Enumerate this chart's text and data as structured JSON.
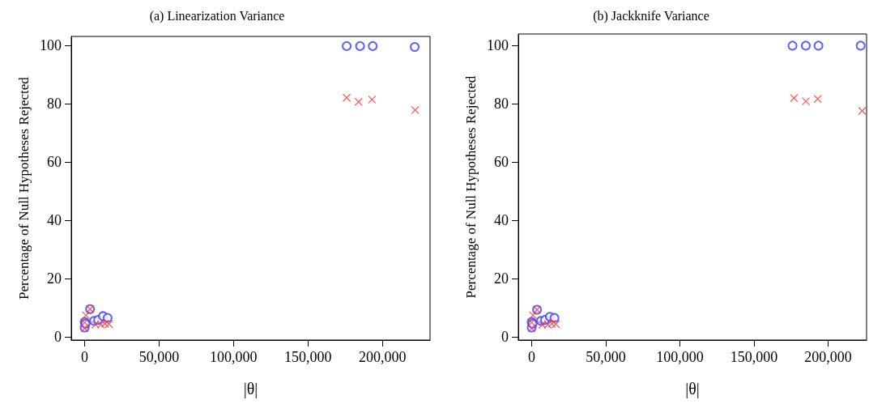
{
  "chart_data": [
    {
      "type": "scatter",
      "title": "(a) Linearization Variance",
      "xlabel": "|θ|",
      "ylabel": "Percentage of Null Hypotheses Rejected",
      "xlim": [
        -9000,
        232000
      ],
      "ylim": [
        -1,
        103
      ],
      "xticks": [
        {
          "value": 0,
          "label": "0"
        },
        {
          "value": 50000,
          "label": "50,000"
        },
        {
          "value": 100000,
          "label": "100,000"
        },
        {
          "value": 150000,
          "label": "150,000"
        },
        {
          "value": 200000,
          "label": "200,000"
        }
      ],
      "yticks": [
        0,
        20,
        40,
        60,
        80,
        100
      ],
      "series": [
        {
          "color": "#3b3bff",
          "marker": "circle",
          "x": [
            0,
            0,
            600,
            3600,
            6300,
            9000,
            12300,
            15400,
            176000,
            185000,
            193500,
            221700
          ],
          "values": [
            3.3,
            5.2,
            4.6,
            9.6,
            5.6,
            5.9,
            7.2,
            6.6,
            99.7,
            99.7,
            99.7,
            99.4
          ]
        },
        {
          "color": "#ff3333",
          "marker": "cross",
          "x": [
            0,
            0,
            900,
            3600,
            7200,
            10900,
            13600,
            16300,
            176000,
            184000,
            193000,
            222000
          ],
          "values": [
            3,
            5,
            7.5,
            9.6,
            4.3,
            4.3,
            4.6,
            4.5,
            82,
            80.6,
            81.4,
            77.8
          ]
        }
      ]
    },
    {
      "type": "scatter",
      "title": "(b) Jackknife Variance",
      "xlabel": "|θ|",
      "ylabel": "Percentage of Null Hypotheses Rejected",
      "xlim": [
        -9000,
        226000
      ],
      "ylim": [
        -1,
        104
      ],
      "xticks": [
        {
          "value": 0,
          "label": "0"
        },
        {
          "value": 50000,
          "label": "50,000"
        },
        {
          "value": 100000,
          "label": "100,000"
        },
        {
          "value": 150000,
          "label": "150,000"
        },
        {
          "value": 200000,
          "label": "200,000"
        }
      ],
      "yticks": [
        0,
        20,
        40,
        60,
        80,
        100
      ],
      "series": [
        {
          "color": "#3b3bff",
          "marker": "circle",
          "x": [
            0,
            0,
            600,
            3600,
            6300,
            9000,
            12300,
            15400,
            176000,
            185000,
            193500,
            222000
          ],
          "values": [
            3.3,
            5.2,
            4.6,
            9.4,
            5.6,
            5.9,
            7.0,
            6.6,
            100,
            100,
            100,
            100
          ]
        },
        {
          "color": "#ff3333",
          "marker": "cross",
          "x": [
            0,
            0,
            900,
            3600,
            7200,
            10900,
            13600,
            16300,
            177000,
            185000,
            193000,
            223000
          ],
          "values": [
            3,
            5,
            7.5,
            9.4,
            4.3,
            4.3,
            4.6,
            4.5,
            82,
            80.9,
            81.7,
            77.6
          ]
        }
      ]
    }
  ]
}
